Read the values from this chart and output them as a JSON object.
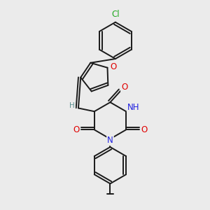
{
  "background_color": "#ebebeb",
  "bond_color": "#1a1a1a",
  "bond_width": 1.4,
  "dbo": 0.055,
  "atom_colors": {
    "O": "#e00000",
    "N": "#2020e0",
    "Cl": "#22aa22",
    "H": "#5a9090",
    "C": "#1a1a1a"
  },
  "font_size_atom": 8.5,
  "font_size_small": 7.5
}
